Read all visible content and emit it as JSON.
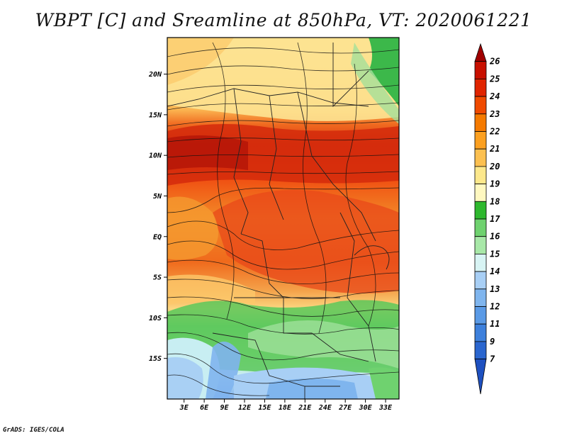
{
  "title": "WBPT [C] and Sreamline at 850hPa, VT: 2020061221",
  "credit": "GrADS: IGES/COLA",
  "map": {
    "lat_ticks": [
      "20N",
      "15N",
      "10N",
      "5N",
      "EQ",
      "5S",
      "10S",
      "15S"
    ],
    "lat_values": [
      20,
      15,
      10,
      5,
      0,
      -5,
      -10,
      -15
    ],
    "lon_ticks": [
      "3E",
      "6E",
      "9E",
      "12E",
      "15E",
      "18E",
      "21E",
      "24E",
      "27E",
      "30E",
      "33E"
    ],
    "lon_values": [
      3,
      6,
      9,
      12,
      15,
      18,
      21,
      24,
      27,
      30,
      33
    ],
    "lat_range": [
      -20,
      24.5
    ],
    "lon_range": [
      0.5,
      35
    ]
  },
  "colorbar": {
    "labels": [
      "26",
      "25",
      "24",
      "23",
      "22",
      "21",
      "20",
      "19",
      "18",
      "17",
      "16",
      "15",
      "14",
      "13",
      "12",
      "11",
      "9",
      "7"
    ],
    "colors": [
      "#a00000",
      "#c81000",
      "#e02400",
      "#f04a00",
      "#f57a00",
      "#fca020",
      "#fcc050",
      "#fde88c",
      "#fff8c0",
      "#2eb82e",
      "#6fd26f",
      "#a8e8a8",
      "#d8f4f4",
      "#a8cff5",
      "#7fb5ee",
      "#5a9ae6",
      "#3d80dc",
      "#2a66cf",
      "#1e50c0"
    ]
  }
}
